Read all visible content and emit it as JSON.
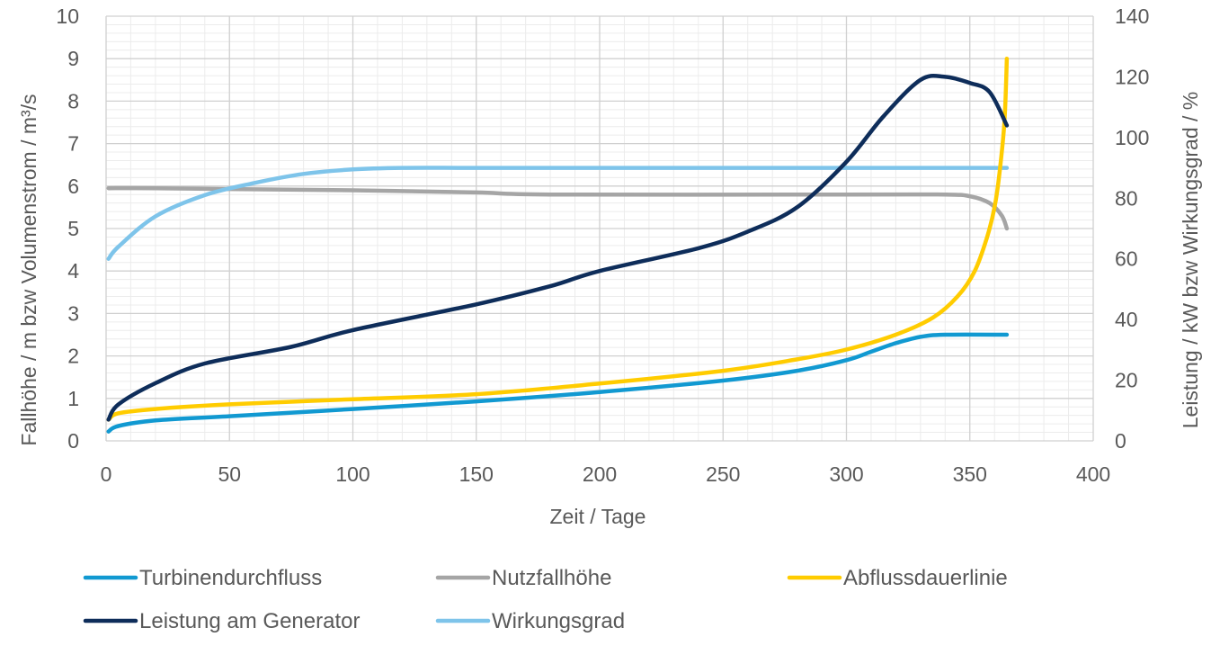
{
  "chart_data": {
    "type": "line",
    "xlabel": "Zeit / Tage",
    "ylabel_left": "Fallhöhe / m bzw Volumenstrom / m³/s",
    "ylabel_right": "Leistung / kW bzw Wirkungsgrad / %",
    "xlim": [
      0,
      400
    ],
    "ylim_left": [
      0,
      10
    ],
    "ylim_right": [
      0,
      140
    ],
    "x_ticks": [
      "0",
      "50",
      "100",
      "150",
      "200",
      "250",
      "300",
      "350",
      "400"
    ],
    "y_left_ticks": [
      "0",
      "1",
      "2",
      "3",
      "4",
      "5",
      "6",
      "7",
      "8",
      "9",
      "10"
    ],
    "y_right_ticks": [
      "0",
      "20",
      "40",
      "60",
      "80",
      "100",
      "120",
      "140"
    ],
    "grid": true,
    "legend_position": "bottom",
    "series": [
      {
        "name": "Turbinendurchfluss",
        "axis": "left",
        "color": "#1199d1",
        "points": [
          [
            1,
            0.22
          ],
          [
            5,
            0.35
          ],
          [
            20,
            0.48
          ],
          [
            50,
            0.58
          ],
          [
            100,
            0.75
          ],
          [
            150,
            0.93
          ],
          [
            200,
            1.15
          ],
          [
            250,
            1.42
          ],
          [
            280,
            1.65
          ],
          [
            300,
            1.9
          ],
          [
            310,
            2.1
          ],
          [
            320,
            2.3
          ],
          [
            330,
            2.45
          ],
          [
            340,
            2.5
          ],
          [
            365,
            2.5
          ]
        ]
      },
      {
        "name": "Nutzfallhöhe",
        "axis": "left",
        "color": "#a5a5a5",
        "points": [
          [
            1,
            5.95
          ],
          [
            20,
            5.95
          ],
          [
            50,
            5.93
          ],
          [
            100,
            5.9
          ],
          [
            150,
            5.85
          ],
          [
            180,
            5.8
          ],
          [
            300,
            5.8
          ],
          [
            340,
            5.8
          ],
          [
            350,
            5.76
          ],
          [
            358,
            5.6
          ],
          [
            363,
            5.3
          ],
          [
            365,
            5.0
          ]
        ]
      },
      {
        "name": "Abflussdauerlinie",
        "axis": "left",
        "color": "#ffcc00",
        "points": [
          [
            1,
            0.5
          ],
          [
            5,
            0.65
          ],
          [
            20,
            0.75
          ],
          [
            50,
            0.86
          ],
          [
            100,
            0.98
          ],
          [
            150,
            1.1
          ],
          [
            200,
            1.35
          ],
          [
            250,
            1.65
          ],
          [
            280,
            1.92
          ],
          [
            300,
            2.15
          ],
          [
            320,
            2.5
          ],
          [
            335,
            2.9
          ],
          [
            345,
            3.4
          ],
          [
            352,
            4.0
          ],
          [
            357,
            4.8
          ],
          [
            360,
            5.5
          ],
          [
            362,
            6.3
          ],
          [
            364,
            7.5
          ],
          [
            365,
            9.0
          ]
        ]
      },
      {
        "name": "Leistung am Generator",
        "axis": "right",
        "color": "#0e2d5a",
        "points": [
          [
            1,
            7
          ],
          [
            5,
            12
          ],
          [
            20,
            19
          ],
          [
            40,
            25.5
          ],
          [
            75,
            31
          ],
          [
            100,
            36.5
          ],
          [
            150,
            45
          ],
          [
            180,
            51
          ],
          [
            200,
            56
          ],
          [
            240,
            63.5
          ],
          [
            260,
            69
          ],
          [
            280,
            77
          ],
          [
            300,
            92
          ],
          [
            315,
            107
          ],
          [
            330,
            119
          ],
          [
            340,
            120
          ],
          [
            350,
            118
          ],
          [
            358,
            115
          ],
          [
            365,
            104
          ]
        ]
      },
      {
        "name": "Wirkungsgrad",
        "axis": "right",
        "color": "#7ec4ea",
        "points": [
          [
            1,
            60
          ],
          [
            5,
            64
          ],
          [
            20,
            74
          ],
          [
            40,
            81
          ],
          [
            60,
            85
          ],
          [
            80,
            88
          ],
          [
            100,
            89.5
          ],
          [
            120,
            90
          ],
          [
            150,
            90
          ],
          [
            200,
            90
          ],
          [
            300,
            90
          ],
          [
            365,
            90
          ]
        ]
      }
    ]
  }
}
